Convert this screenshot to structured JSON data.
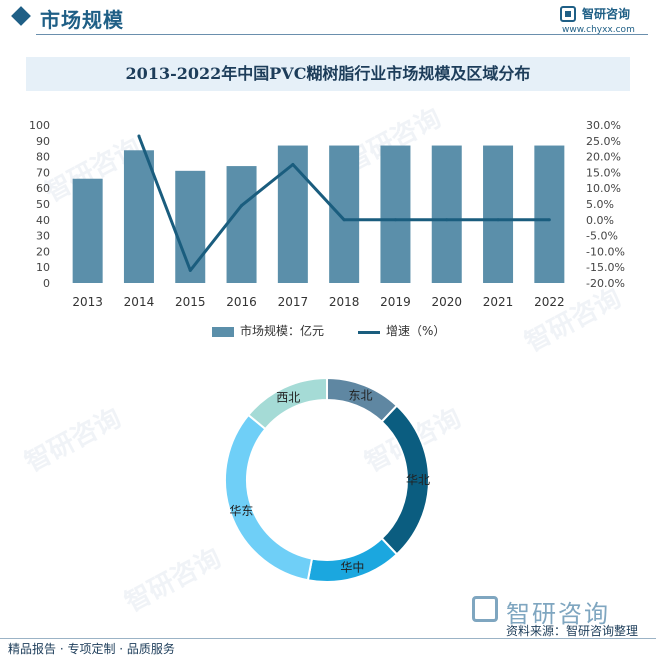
{
  "header": {
    "section_title": "市场规模",
    "logo_name": "智研咨询",
    "logo_url": "www.chyxx.com"
  },
  "chart_title": "2013-2022年中国PVC糊树脂行业市场规模及区域分布",
  "colors": {
    "bar": "#5b8faa",
    "line": "#1a5d7e",
    "accent": "#1f5f86",
    "donut": [
      "#5f87a2",
      "#0b5d80",
      "#1ba7df",
      "#6fcff7",
      "#a5dbd6"
    ]
  },
  "chart_data": [
    {
      "type": "bar",
      "categories": [
        "2013",
        "2014",
        "2015",
        "2016",
        "2017",
        "2018",
        "2019",
        "2020",
        "2021",
        "2022"
      ],
      "series": [
        {
          "name": "市场规模：亿元",
          "type": "bar",
          "axis": "left",
          "values": [
            66,
            84,
            71,
            74,
            87,
            87,
            87,
            87,
            87,
            87
          ]
        },
        {
          "name": "增速（%）",
          "type": "line",
          "axis": "right",
          "values": [
            null,
            26.5,
            -16.0,
            4.5,
            17.5,
            0.0,
            0.0,
            0.0,
            0.0,
            0.0
          ]
        }
      ],
      "y_left": {
        "min": 0,
        "max": 100,
        "ticks": [
          "0",
          "10",
          "20",
          "30",
          "40",
          "50",
          "60",
          "70",
          "80",
          "90",
          "100"
        ]
      },
      "y_right": {
        "min": -20,
        "max": 30,
        "ticks": [
          "-20.0%",
          "-15.0%",
          "-10.0%",
          "-5.0%",
          "0.0%",
          "5.0%",
          "10.0%",
          "15.0%",
          "20.0%",
          "25.0%",
          "30.0%"
        ]
      },
      "grid": false,
      "legend": "bottom"
    },
    {
      "type": "pie",
      "donut": true,
      "labels": [
        "东北",
        "华北",
        "华中",
        "华东",
        "西北"
      ],
      "values": [
        12,
        26,
        15,
        33,
        14
      ],
      "legend": "none"
    }
  ],
  "footer": {
    "logo_name": "智研咨询",
    "source": "资料来源：智研咨询整理",
    "slogan": "精品报告 · 专项定制 · 品质服务"
  }
}
